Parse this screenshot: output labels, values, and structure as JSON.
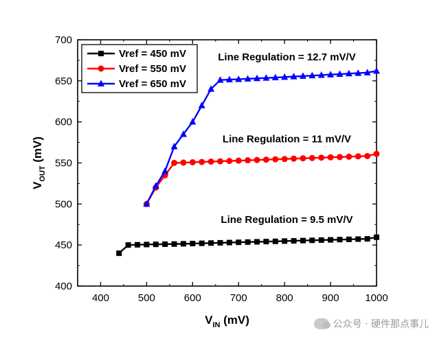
{
  "chart_data": {
    "type": "line",
    "xlabel_main": "V",
    "xlabel_sub": "IN",
    "xlabel_unit": " (mV)",
    "ylabel_main": "V",
    "ylabel_sub": "OUT",
    "ylabel_unit": " (mV)",
    "xlim": [
      350,
      1000
    ],
    "ylim": [
      400,
      700
    ],
    "xticks": [
      400,
      500,
      600,
      700,
      800,
      900,
      1000
    ],
    "yticks": [
      400,
      450,
      500,
      550,
      600,
      650,
      700
    ],
    "grid": false,
    "legend_position": "top-left",
    "series": [
      {
        "name": "Vref = 450 mV",
        "color": "#000000",
        "marker": "square",
        "x": [
          440,
          460,
          480,
          500,
          520,
          540,
          560,
          580,
          600,
          620,
          640,
          660,
          680,
          700,
          720,
          740,
          760,
          780,
          800,
          820,
          840,
          860,
          880,
          900,
          920,
          940,
          960,
          980,
          1000
        ],
        "y": [
          440,
          450,
          450.3,
          450.6,
          450.8,
          451.0,
          451.2,
          451.5,
          451.8,
          452.1,
          452.4,
          452.7,
          453.0,
          453.3,
          453.6,
          453.9,
          454.2,
          454.5,
          454.8,
          455.1,
          455.4,
          455.7,
          456.0,
          456.3,
          456.6,
          456.9,
          457.2,
          457.5,
          459.5
        ]
      },
      {
        "name": "Vref = 550 mV",
        "color": "#ff0000",
        "marker": "circle",
        "x": [
          500,
          520,
          540,
          560,
          580,
          600,
          620,
          640,
          660,
          680,
          700,
          720,
          740,
          760,
          780,
          800,
          820,
          840,
          860,
          880,
          900,
          920,
          940,
          960,
          980,
          1000
        ],
        "y": [
          500,
          520,
          535,
          550,
          550.4,
          550.8,
          551.2,
          551.6,
          552,
          552.4,
          552.8,
          553.2,
          553.6,
          554,
          554.4,
          554.8,
          555.2,
          555.6,
          556,
          556.4,
          556.8,
          557.2,
          557.6,
          558,
          558.4,
          561
        ]
      },
      {
        "name": "Vref = 650 mV",
        "color": "#0000ff",
        "marker": "triangle",
        "x": [
          500,
          520,
          540,
          560,
          580,
          600,
          620,
          640,
          660,
          680,
          700,
          720,
          740,
          760,
          780,
          800,
          820,
          840,
          860,
          880,
          900,
          920,
          940,
          960,
          980,
          1000
        ],
        "y": [
          500,
          522,
          540,
          570,
          585,
          600,
          620,
          640,
          651,
          651.5,
          652,
          652.5,
          653,
          653.5,
          654,
          654.6,
          655.2,
          655.8,
          656.4,
          657,
          657.6,
          658.2,
          658.8,
          659.4,
          660,
          662
        ]
      }
    ],
    "annotations": [
      {
        "text": "Line Regulation = 12.7 mV/V",
        "x": 805,
        "y": 675
      },
      {
        "text": "Line Regulation = 11 mV/V",
        "x": 805,
        "y": 575
      },
      {
        "text": "Line Regulation = 9.5 mV/V",
        "x": 805,
        "y": 477
      }
    ]
  },
  "watermark": {
    "text": "公众号 · 硬件那点事儿"
  }
}
